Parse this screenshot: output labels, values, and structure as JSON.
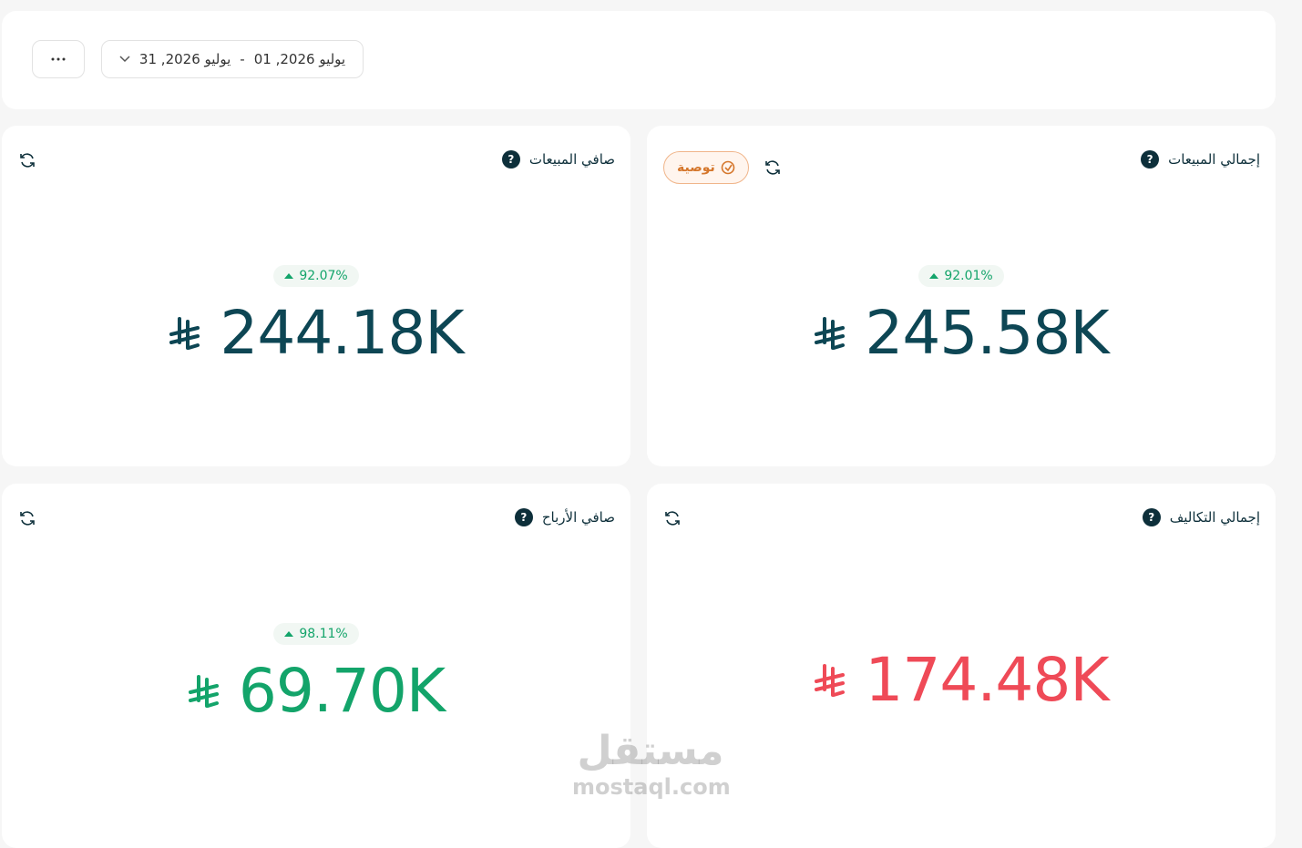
{
  "toolbar": {
    "date_start": "يوليو 2026, 01",
    "date_separator": "-",
    "date_end": "يوليو 2026, 31"
  },
  "cards": [
    {
      "title": "إجمالي المبيعات",
      "badge": "توصية",
      "change": "92.01%",
      "value": "245.58K",
      "color": "#0d4654"
    },
    {
      "title": "صافي المبيعات",
      "change": "92.07%",
      "value": "244.18K",
      "color": "#0d4654"
    },
    {
      "title": "إجمالي التكاليف",
      "value": "174.48K",
      "color": "#ef4a57"
    },
    {
      "title": "صافي الأرباح",
      "change": "98.11%",
      "value": "69.70K",
      "color": "#13a46a"
    }
  ],
  "watermark": {
    "logo": "مستقل",
    "url": "mostaql.com"
  }
}
